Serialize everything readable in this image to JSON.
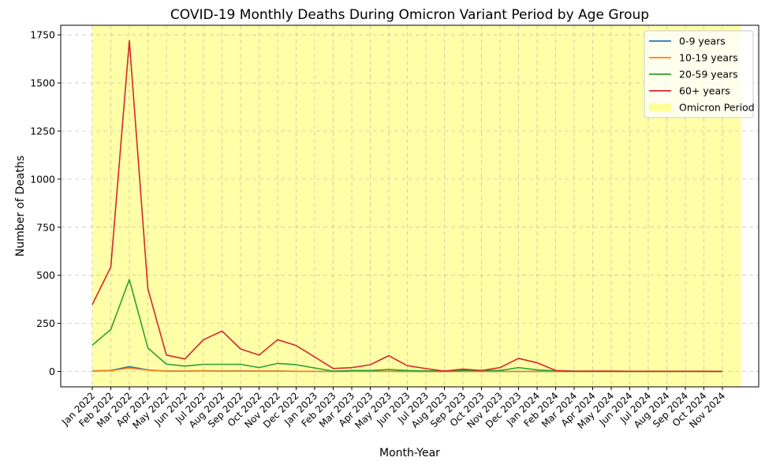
{
  "chart_data": {
    "type": "line",
    "title": "COVID-19 Monthly Deaths During Omicron Variant Period by Age Group",
    "xlabel": "Month-Year",
    "ylabel": "Number of Deaths",
    "ylim": [
      -80,
      1800
    ],
    "yticks": [
      0,
      250,
      500,
      750,
      1000,
      1250,
      1500,
      1750
    ],
    "grid": true,
    "legend_position": "top-right",
    "categories": [
      "Jan 2022",
      "Feb 2022",
      "Mar 2022",
      "Apr 2022",
      "May 2022",
      "Jun 2022",
      "Jul 2022",
      "Aug 2022",
      "Sep 2022",
      "Oct 2022",
      "Nov 2022",
      "Dec 2022",
      "Jan 2023",
      "Feb 2023",
      "Mar 2023",
      "Apr 2023",
      "May 2023",
      "Jun 2023",
      "Jul 2023",
      "Aug 2023",
      "Sep 2023",
      "Oct 2023",
      "Nov 2023",
      "Dec 2023",
      "Jan 2024",
      "Feb 2024",
      "Mar 2024",
      "Apr 2024",
      "May 2024",
      "Jun 2024",
      "Jul 2024",
      "Aug 2024",
      "Sep 2024",
      "Oct 2024",
      "Nov 2024"
    ],
    "series": [
      {
        "name": "0-9 years",
        "color": "#1f77b4",
        "values": [
          3,
          5,
          25,
          8,
          2,
          2,
          4,
          2,
          3,
          2,
          2,
          1,
          1,
          0,
          1,
          1,
          1,
          0,
          0,
          0,
          0,
          0,
          0,
          0,
          0,
          0,
          0,
          0,
          0,
          0,
          0,
          0,
          0,
          0,
          0
        ]
      },
      {
        "name": "10-19 years",
        "color": "#ff7f0e",
        "values": [
          2,
          4,
          18,
          7,
          2,
          2,
          3,
          2,
          2,
          2,
          2,
          1,
          1,
          0,
          1,
          1,
          1,
          0,
          0,
          0,
          0,
          0,
          0,
          0,
          0,
          0,
          0,
          0,
          0,
          0,
          0,
          0,
          0,
          0,
          0
        ]
      },
      {
        "name": "20-59 years",
        "color": "#2ca02c",
        "values": [
          137,
          218,
          478,
          122,
          38,
          28,
          37,
          37,
          37,
          20,
          42,
          35,
          18,
          2,
          5,
          5,
          10,
          5,
          3,
          2,
          5,
          5,
          5,
          20,
          8,
          3,
          2,
          1,
          1,
          1,
          1,
          1,
          1,
          1,
          0
        ]
      },
      {
        "name": "60+ years",
        "color": "#d62728",
        "values": [
          348,
          543,
          1720,
          430,
          85,
          65,
          165,
          210,
          117,
          85,
          165,
          135,
          75,
          15,
          20,
          35,
          82,
          30,
          15,
          2,
          12,
          5,
          20,
          68,
          45,
          5,
          1,
          2,
          2,
          1,
          1,
          1,
          1,
          1,
          0
        ]
      }
    ],
    "span_label": "Omicron Period",
    "span_color": "#ffff99",
    "span": [
      "Jan 2022",
      "Dec 2024"
    ]
  }
}
